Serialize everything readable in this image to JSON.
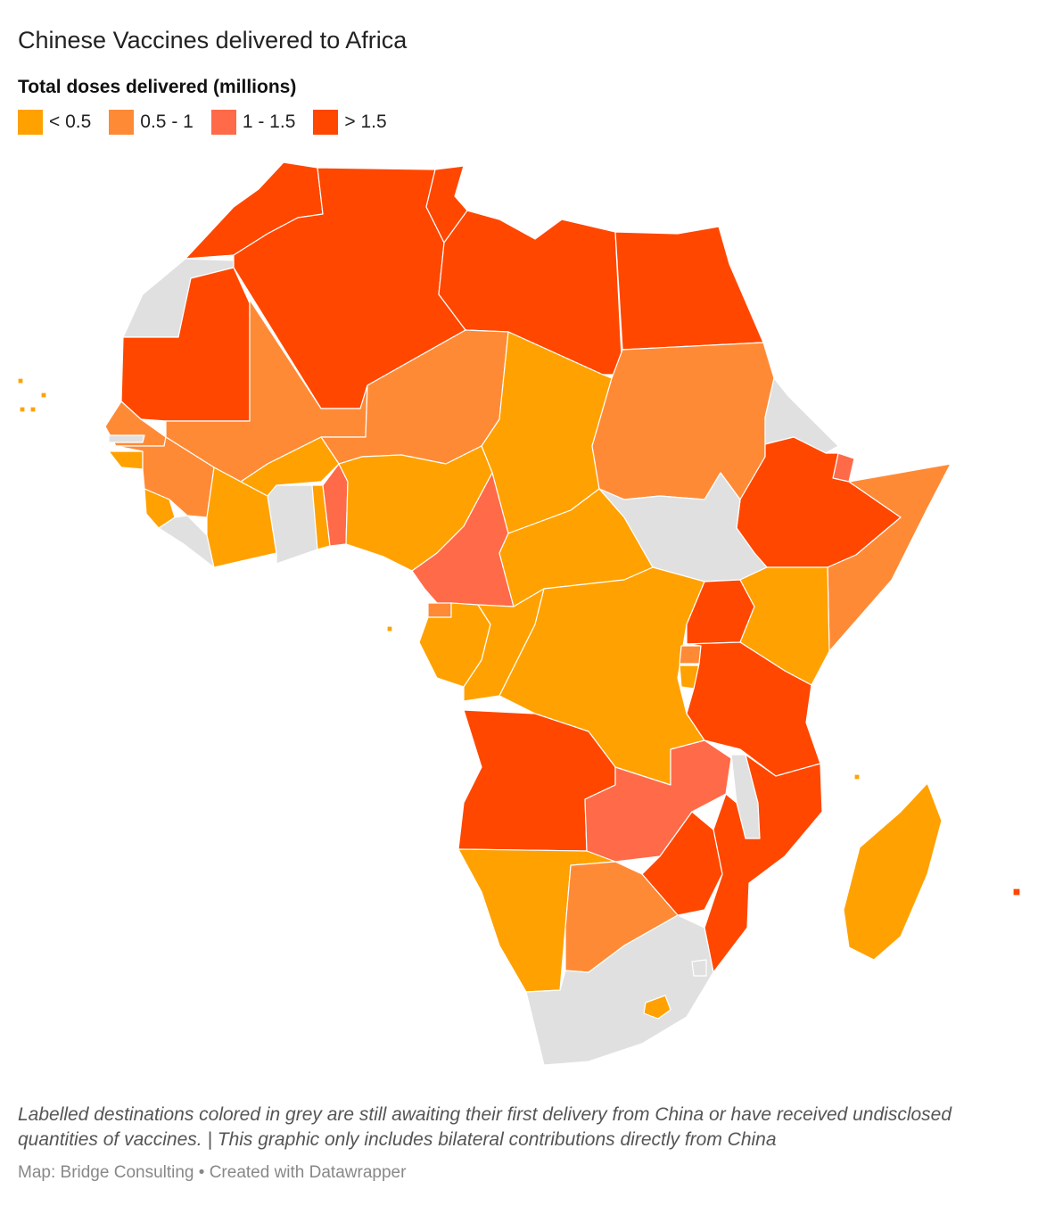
{
  "title": "Chinese Vaccines delivered to Africa",
  "legend": {
    "title": "Total doses delivered (millions)",
    "items": [
      {
        "label": "< 0.5",
        "color": "#FFA100"
      },
      {
        "label": "0.5 - 1",
        "color": "#FF8A36"
      },
      {
        "label": "1 - 1.5",
        "color": "#FF6A48"
      },
      {
        "label": "> 1.5",
        "color": "#FF4700"
      }
    ]
  },
  "colors": {
    "no_data": "#E0E0E0",
    "border": "#FFFFFF"
  },
  "notes": "Labelled destinations colored in grey are still awaiting their first delivery from China or have received undisclosed quantities of vaccines. | This graphic only includes bilateral contributions directly from China",
  "source": "Map: Bridge Consulting • Created with Datawrapper",
  "map_data": {
    "bins": [
      "< 0.5",
      "0.5 - 1",
      "1 - 1.5",
      "> 1.5"
    ],
    "countries": [
      {
        "id": "morocco",
        "bin": 3
      },
      {
        "id": "algeria",
        "bin": 3
      },
      {
        "id": "tunisia",
        "bin": 3
      },
      {
        "id": "libya",
        "bin": 3
      },
      {
        "id": "egypt",
        "bin": 3
      },
      {
        "id": "mauritania",
        "bin": 3
      },
      {
        "id": "western-sahara",
        "bin": -1
      },
      {
        "id": "mali",
        "bin": 1
      },
      {
        "id": "niger",
        "bin": 1
      },
      {
        "id": "chad",
        "bin": 0
      },
      {
        "id": "sudan",
        "bin": 1
      },
      {
        "id": "eritrea",
        "bin": -1
      },
      {
        "id": "djibouti",
        "bin": 2
      },
      {
        "id": "ethiopia",
        "bin": 3
      },
      {
        "id": "somalia",
        "bin": 1
      },
      {
        "id": "senegal",
        "bin": 1
      },
      {
        "id": "gambia",
        "bin": -1
      },
      {
        "id": "guinea-bissau",
        "bin": 0
      },
      {
        "id": "guinea",
        "bin": 1
      },
      {
        "id": "sierra-leone",
        "bin": 0
      },
      {
        "id": "liberia",
        "bin": -1
      },
      {
        "id": "cote-divoire",
        "bin": 0
      },
      {
        "id": "burkina-faso",
        "bin": 0
      },
      {
        "id": "ghana",
        "bin": -1
      },
      {
        "id": "togo",
        "bin": 0
      },
      {
        "id": "benin",
        "bin": 2
      },
      {
        "id": "nigeria",
        "bin": 0
      },
      {
        "id": "cameroon",
        "bin": 2
      },
      {
        "id": "central-african-republic",
        "bin": 0
      },
      {
        "id": "south-sudan",
        "bin": -1
      },
      {
        "id": "equatorial-guinea",
        "bin": 1
      },
      {
        "id": "gabon",
        "bin": 0
      },
      {
        "id": "republic-of-congo",
        "bin": 0
      },
      {
        "id": "dr-congo",
        "bin": 0
      },
      {
        "id": "uganda",
        "bin": 3
      },
      {
        "id": "kenya",
        "bin": 0
      },
      {
        "id": "rwanda",
        "bin": 1
      },
      {
        "id": "burundi",
        "bin": 0
      },
      {
        "id": "tanzania",
        "bin": 3
      },
      {
        "id": "angola",
        "bin": 3
      },
      {
        "id": "zambia",
        "bin": 2
      },
      {
        "id": "malawi",
        "bin": -1
      },
      {
        "id": "mozambique",
        "bin": 3
      },
      {
        "id": "zimbabwe",
        "bin": 3
      },
      {
        "id": "namibia",
        "bin": 0
      },
      {
        "id": "botswana",
        "bin": 1
      },
      {
        "id": "south-africa",
        "bin": -1
      },
      {
        "id": "lesotho",
        "bin": 0
      },
      {
        "id": "eswatini",
        "bin": -1
      },
      {
        "id": "madagascar",
        "bin": 0
      },
      {
        "id": "cabo-verde",
        "bin": 0
      },
      {
        "id": "sao-tome",
        "bin": 0
      },
      {
        "id": "comoros",
        "bin": 0
      },
      {
        "id": "mauritius",
        "bin": 3
      }
    ]
  }
}
